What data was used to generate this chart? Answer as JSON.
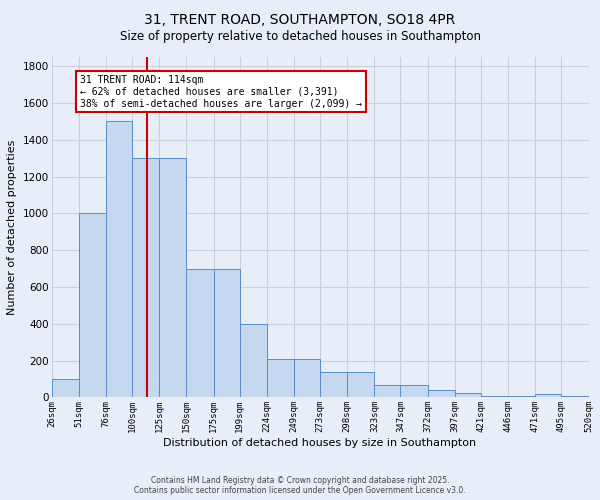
{
  "title1": "31, TRENT ROAD, SOUTHAMPTON, SO18 4PR",
  "title2": "Size of property relative to detached houses in Southampton",
  "xlabel": "Distribution of detached houses by size in Southampton",
  "ylabel": "Number of detached properties",
  "bar_edges": [
    26,
    51,
    76,
    100,
    125,
    150,
    175,
    199,
    224,
    249,
    273,
    298,
    323,
    347,
    372,
    397,
    421,
    446,
    471,
    495,
    520
  ],
  "bar_heights": [
    100,
    1000,
    1500,
    1300,
    1300,
    700,
    700,
    400,
    210,
    210,
    140,
    140,
    70,
    70,
    40,
    25,
    10,
    10,
    20,
    10
  ],
  "bar_color": "#c5d8f0",
  "bar_edgecolor": "#5b8cc8",
  "bg_color": "#e8eef8",
  "grid_color": "#c8d0dc",
  "red_line_x": 114,
  "red_line_color": "#cc0000",
  "annotation_text": "31 TRENT ROAD: 114sqm\n← 62% of detached houses are smaller (3,391)\n38% of semi-detached houses are larger (2,099) →",
  "annotation_box_color": "#ffffff",
  "annotation_border_color": "#cc0000",
  "ylim": [
    0,
    1850
  ],
  "tick_labels": [
    "26sqm",
    "51sqm",
    "76sqm",
    "100sqm",
    "125sqm",
    "150sqm",
    "175sqm",
    "199sqm",
    "224sqm",
    "249sqm",
    "273sqm",
    "298sqm",
    "323sqm",
    "347sqm",
    "372sqm",
    "397sqm",
    "421sqm",
    "446sqm",
    "471sqm",
    "495sqm",
    "520sqm"
  ],
  "footer1": "Contains HM Land Registry data © Crown copyright and database right 2025.",
  "footer2": "Contains public sector information licensed under the Open Government Licence v3.0."
}
